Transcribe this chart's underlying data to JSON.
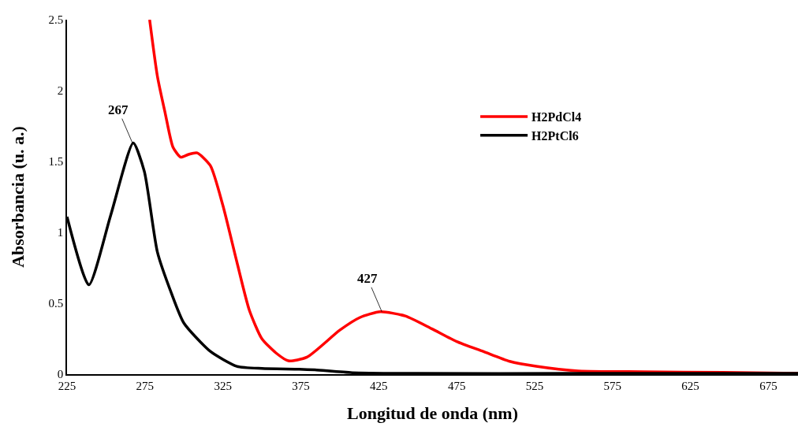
{
  "chart_data": {
    "type": "line",
    "xlabel": "Longitud de onda (nm)",
    "ylabel": "Absorbancia (u. a.)",
    "xlim": [
      225,
      694
    ],
    "xticks": [
      225,
      275,
      325,
      375,
      425,
      475,
      525,
      575,
      625,
      675
    ],
    "ylim": [
      0,
      2.5
    ],
    "yticks": [
      0,
      0.5,
      1,
      1.5,
      2,
      2.5
    ],
    "legend": "right",
    "marker": "none",
    "line_style": "solid",
    "series": [
      {
        "name": "H2PdCl4",
        "color": "#ff0000",
        "x": [
          278,
          283,
          288,
          293,
          298,
          303,
          308.5,
          317,
          325,
          334,
          342,
          350,
          359,
          367,
          379,
          400,
          413,
          426,
          442,
          459,
          475,
          492,
          509,
          526,
          553,
          595,
          646,
          694
        ],
        "values": [
          2.5,
          2.1,
          1.84,
          1.6,
          1.53,
          1.55,
          1.56,
          1.47,
          1.19,
          0.79,
          0.45,
          0.25,
          0.15,
          0.094,
          0.12,
          0.31,
          0.4,
          0.44,
          0.41,
          0.32,
          0.23,
          0.16,
          0.09,
          0.055,
          0.022,
          0.017,
          0.012,
          0.005
        ]
      },
      {
        "name": "H2PtCl6",
        "color": "#000000",
        "x": [
          225,
          239,
          253,
          267.5,
          274.6,
          283,
          292,
          300,
          317,
          334,
          350,
          374,
          384,
          408,
          450,
          550,
          694
        ],
        "values": [
          1.11,
          0.63,
          1.12,
          1.63,
          1.43,
          0.86,
          0.57,
          0.36,
          0.16,
          0.055,
          0.04,
          0.035,
          0.03,
          0.01,
          0.005,
          0.005,
          0.005
        ]
      }
    ],
    "annotations": [
      {
        "text": "267",
        "x": 267,
        "y": 1.63
      },
      {
        "text": "427",
        "x": 427,
        "y": 0.44
      }
    ]
  }
}
